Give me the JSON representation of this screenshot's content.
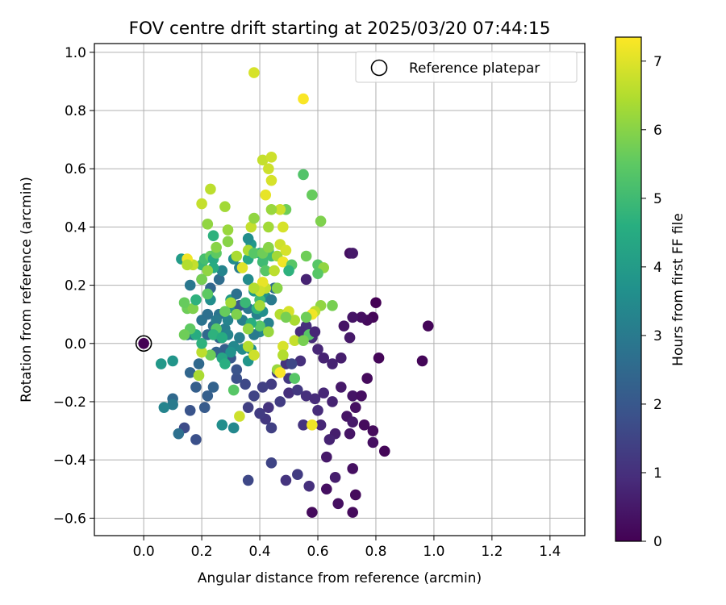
{
  "chart_data": {
    "type": "scatter",
    "title": "FOV centre drift starting at 2025/03/20 07:44:15",
    "xlabel": "Angular distance from reference (arcmin)",
    "ylabel": "Rotation from reference (arcmin)",
    "xlim": [
      -0.17,
      1.52
    ],
    "ylim": [
      -0.66,
      1.03
    ],
    "x_ticks": [
      0.0,
      0.2,
      0.4,
      0.6,
      0.8,
      1.0,
      1.2,
      1.4
    ],
    "x_tick_labels": [
      "0.0",
      "0.2",
      "0.4",
      "0.6",
      "0.8",
      "1.0",
      "1.2",
      "1.4"
    ],
    "y_ticks": [
      -0.6,
      -0.4,
      -0.2,
      0.0,
      0.2,
      0.4,
      0.6,
      0.8,
      1.0
    ],
    "y_tick_labels": [
      "−0.6",
      "−0.4",
      "−0.2",
      "0.0",
      "0.2",
      "0.4",
      "0.6",
      "0.8",
      "1.0"
    ],
    "grid": true,
    "legend": {
      "placement": "top-right",
      "entries": [
        "Reference platepar"
      ]
    },
    "reference": {
      "x": 0.0,
      "y": 0.0
    },
    "colorbar": {
      "label": "Hours from first FF file",
      "range": [
        0,
        7.35
      ],
      "ticks": [
        0,
        1,
        2,
        3,
        4,
        5,
        6,
        7
      ],
      "tick_labels": [
        "0",
        "1",
        "2",
        "3",
        "4",
        "5",
        "6",
        "7"
      ],
      "colormap": "viridis"
    },
    "points": [
      [
        0.0,
        0.0,
        0.0
      ],
      [
        0.58,
        -0.58,
        0.2
      ],
      [
        0.63,
        -0.5,
        0.3
      ],
      [
        0.67,
        -0.55,
        0.3
      ],
      [
        0.72,
        -0.58,
        0.2
      ],
      [
        0.73,
        -0.52,
        0.2
      ],
      [
        0.72,
        -0.43,
        0.3
      ],
      [
        0.66,
        -0.46,
        0.6
      ],
      [
        0.63,
        -0.39,
        0.5
      ],
      [
        0.57,
        -0.49,
        1.0
      ],
      [
        0.53,
        -0.45,
        1.3
      ],
      [
        0.49,
        -0.47,
        1.1
      ],
      [
        0.44,
        -0.41,
        1.5
      ],
      [
        0.36,
        -0.47,
        1.6
      ],
      [
        0.83,
        -0.37,
        0.1
      ],
      [
        0.79,
        -0.3,
        0.2
      ],
      [
        0.79,
        -0.34,
        0.3
      ],
      [
        0.76,
        -0.28,
        0.2
      ],
      [
        0.71,
        -0.31,
        0.4
      ],
      [
        0.66,
        -0.31,
        0.6
      ],
      [
        0.64,
        -0.33,
        0.7
      ],
      [
        0.61,
        -0.28,
        0.8
      ],
      [
        0.55,
        -0.28,
        1.1
      ],
      [
        0.6,
        -0.23,
        0.9
      ],
      [
        0.44,
        -0.29,
        1.4
      ],
      [
        0.42,
        -0.26,
        1.2
      ],
      [
        0.4,
        -0.24,
        1.3
      ],
      [
        0.36,
        -0.22,
        1.4
      ],
      [
        0.43,
        -0.22,
        1.1
      ],
      [
        0.47,
        -0.2,
        1.3
      ],
      [
        0.5,
        -0.17,
        1.0
      ],
      [
        0.53,
        -0.16,
        1.2
      ],
      [
        0.56,
        -0.18,
        1.0
      ],
      [
        0.59,
        -0.19,
        0.9
      ],
      [
        0.62,
        -0.17,
        0.8
      ],
      [
        0.65,
        -0.2,
        0.7
      ],
      [
        0.68,
        -0.15,
        0.5
      ],
      [
        0.72,
        -0.18,
        0.4
      ],
      [
        0.75,
        -0.18,
        0.3
      ],
      [
        0.77,
        -0.12,
        0.2
      ],
      [
        0.73,
        -0.22,
        0.3
      ],
      [
        0.7,
        -0.25,
        0.4
      ],
      [
        0.72,
        -0.27,
        0.5
      ],
      [
        0.81,
        -0.05,
        0.1
      ],
      [
        0.79,
        0.09,
        0.1
      ],
      [
        0.77,
        0.08,
        0.2
      ],
      [
        0.8,
        0.14,
        0.0
      ],
      [
        0.96,
        -0.06,
        0.1
      ],
      [
        0.98,
        0.06,
        0.1
      ],
      [
        0.75,
        0.09,
        0.3
      ],
      [
        0.72,
        0.09,
        0.4
      ],
      [
        0.71,
        0.31,
        0.3
      ],
      [
        0.72,
        0.31,
        0.5
      ],
      [
        0.69,
        0.06,
        0.4
      ],
      [
        0.71,
        0.02,
        0.5
      ],
      [
        0.68,
        -0.05,
        0.6
      ],
      [
        0.65,
        -0.07,
        0.7
      ],
      [
        0.62,
        -0.05,
        0.7
      ],
      [
        0.6,
        -0.02,
        0.8
      ],
      [
        0.58,
        0.02,
        0.9
      ],
      [
        0.56,
        0.06,
        1.0
      ],
      [
        0.54,
        0.04,
        0.9
      ],
      [
        0.54,
        -0.06,
        1.0
      ],
      [
        0.49,
        -0.07,
        1.1
      ],
      [
        0.5,
        -0.12,
        1.2
      ],
      [
        0.46,
        -0.1,
        1.2
      ],
      [
        0.44,
        -0.14,
        1.3
      ],
      [
        0.41,
        -0.15,
        1.4
      ],
      [
        0.38,
        -0.18,
        1.5
      ],
      [
        0.35,
        -0.14,
        1.6
      ],
      [
        0.32,
        -0.12,
        1.8
      ],
      [
        0.3,
        -0.05,
        2.0
      ],
      [
        0.32,
        -0.09,
        1.9
      ],
      [
        0.28,
        -0.02,
        2.2
      ],
      [
        0.25,
        -0.03,
        2.3
      ],
      [
        0.26,
        0.02,
        2.4
      ],
      [
        0.24,
        0.06,
        2.6
      ],
      [
        0.22,
        0.03,
        2.5
      ],
      [
        0.2,
        0.08,
        2.8
      ],
      [
        0.17,
        0.03,
        2.7
      ],
      [
        0.15,
        0.03,
        2.9
      ],
      [
        0.19,
        -0.07,
        2.5
      ],
      [
        0.16,
        -0.1,
        2.4
      ],
      [
        0.18,
        -0.15,
        2.2
      ],
      [
        0.22,
        -0.18,
        2.2
      ],
      [
        0.24,
        -0.15,
        2.3
      ],
      [
        0.21,
        -0.22,
        2.1
      ],
      [
        0.16,
        -0.23,
        1.9
      ],
      [
        0.14,
        -0.29,
        1.7
      ],
      [
        0.18,
        -0.33,
        1.8
      ],
      [
        0.1,
        -0.19,
        2.5
      ],
      [
        0.1,
        -0.21,
        3.0
      ],
      [
        0.12,
        -0.31,
        2.7
      ],
      [
        0.07,
        -0.22,
        3.3
      ],
      [
        0.06,
        -0.07,
        3.9
      ],
      [
        0.1,
        -0.06,
        3.8
      ],
      [
        0.13,
        0.29,
        4.0
      ],
      [
        0.16,
        0.2,
        2.9
      ],
      [
        0.2,
        0.22,
        3.0
      ],
      [
        0.22,
        0.1,
        2.7
      ],
      [
        0.26,
        0.1,
        2.8
      ],
      [
        0.28,
        0.05,
        3.1
      ],
      [
        0.29,
        0.03,
        3.3
      ],
      [
        0.31,
        -0.01,
        3.4
      ],
      [
        0.33,
        0.02,
        3.1
      ],
      [
        0.34,
        0.08,
        3.1
      ],
      [
        0.36,
        0.12,
        2.9
      ],
      [
        0.39,
        0.1,
        3.2
      ],
      [
        0.41,
        0.11,
        3.6
      ],
      [
        0.42,
        0.16,
        3.7
      ],
      [
        0.43,
        0.07,
        3.2
      ],
      [
        0.45,
        0.19,
        2.6
      ],
      [
        0.44,
        0.15,
        3.0
      ],
      [
        0.4,
        0.04,
        3.4
      ],
      [
        0.38,
        0.03,
        3.0
      ],
      [
        0.37,
        -0.02,
        3.6
      ],
      [
        0.36,
        -0.06,
        3.8
      ],
      [
        0.34,
        -0.02,
        3.5
      ],
      [
        0.3,
        -0.03,
        3.7
      ],
      [
        0.31,
        0.12,
        3.5
      ],
      [
        0.3,
        0.15,
        3.9
      ],
      [
        0.32,
        0.17,
        2.7
      ],
      [
        0.33,
        0.13,
        2.0
      ],
      [
        0.29,
        0.08,
        3.3
      ],
      [
        0.25,
        0.08,
        3.0
      ],
      [
        0.23,
        0.15,
        3.6
      ],
      [
        0.23,
        0.19,
        2.4
      ],
      [
        0.26,
        0.22,
        2.6
      ],
      [
        0.27,
        0.25,
        3.3
      ],
      [
        0.31,
        0.29,
        3.6
      ],
      [
        0.33,
        0.26,
        3.1
      ],
      [
        0.36,
        0.22,
        3.5
      ],
      [
        0.38,
        0.18,
        4.0
      ],
      [
        0.36,
        0.29,
        4.4
      ],
      [
        0.37,
        0.34,
        3.9
      ],
      [
        0.36,
        0.36,
        3.6
      ],
      [
        0.4,
        0.31,
        4.6
      ],
      [
        0.41,
        0.28,
        5.0
      ],
      [
        0.43,
        0.32,
        5.4
      ],
      [
        0.44,
        0.3,
        5.0
      ],
      [
        0.42,
        0.25,
        5.4
      ],
      [
        0.4,
        0.15,
        5.0
      ],
      [
        0.39,
        0.12,
        4.7
      ],
      [
        0.4,
        0.06,
        5.4
      ],
      [
        0.37,
        0.07,
        4.6
      ],
      [
        0.36,
        0.05,
        6.1
      ],
      [
        0.35,
        0.14,
        4.9
      ],
      [
        0.32,
        0.1,
        5.9
      ],
      [
        0.3,
        0.14,
        6.3
      ],
      [
        0.28,
        0.11,
        5.6
      ],
      [
        0.25,
        0.05,
        5.4
      ],
      [
        0.24,
        0.03,
        4.7
      ],
      [
        0.27,
        0.02,
        4.5
      ],
      [
        0.27,
        -0.05,
        4.3
      ],
      [
        0.28,
        -0.07,
        4.6
      ],
      [
        0.23,
        -0.04,
        5.7
      ],
      [
        0.2,
        -0.03,
        6.6
      ],
      [
        0.19,
        -0.11,
        6.4
      ],
      [
        0.2,
        0.0,
        4.7
      ],
      [
        0.18,
        0.03,
        4.5
      ],
      [
        0.16,
        0.05,
        5.5
      ],
      [
        0.14,
        0.03,
        5.7
      ],
      [
        0.15,
        0.12,
        5.7
      ],
      [
        0.17,
        0.12,
        5.9
      ],
      [
        0.14,
        0.14,
        5.6
      ],
      [
        0.18,
        0.15,
        4.7
      ],
      [
        0.22,
        0.17,
        5.5
      ],
      [
        0.2,
        0.27,
        4.9
      ],
      [
        0.21,
        0.29,
        5.1
      ],
      [
        0.23,
        0.3,
        5.6
      ],
      [
        0.24,
        0.29,
        4.4
      ],
      [
        0.25,
        0.31,
        5.5
      ],
      [
        0.24,
        0.26,
        4.5
      ],
      [
        0.22,
        0.25,
        6.1
      ],
      [
        0.2,
        0.22,
        5.8
      ],
      [
        0.17,
        0.27,
        6.7
      ],
      [
        0.15,
        0.29,
        7.2
      ],
      [
        0.15,
        0.27,
        6.5
      ],
      [
        0.22,
        0.41,
        6.1
      ],
      [
        0.24,
        0.37,
        4.7
      ],
      [
        0.25,
        0.33,
        6.0
      ],
      [
        0.29,
        0.35,
        6.0
      ],
      [
        0.29,
        0.39,
        6.2
      ],
      [
        0.28,
        0.47,
        6.3
      ],
      [
        0.23,
        0.53,
        6.6
      ],
      [
        0.2,
        0.48,
        6.7
      ],
      [
        0.32,
        0.3,
        6.4
      ],
      [
        0.34,
        0.26,
        7.0
      ],
      [
        0.36,
        0.32,
        6.4
      ],
      [
        0.38,
        0.31,
        5.4
      ],
      [
        0.41,
        0.31,
        5.7
      ],
      [
        0.43,
        0.33,
        6.0
      ],
      [
        0.46,
        0.3,
        6.3
      ],
      [
        0.47,
        0.34,
        6.8
      ],
      [
        0.49,
        0.32,
        6.9
      ],
      [
        0.48,
        0.28,
        7.2
      ],
      [
        0.45,
        0.25,
        6.6
      ],
      [
        0.42,
        0.19,
        6.7
      ],
      [
        0.41,
        0.21,
        7.1
      ],
      [
        0.4,
        0.18,
        6.8
      ],
      [
        0.38,
        0.19,
        6.5
      ],
      [
        0.4,
        0.13,
        6.3
      ],
      [
        0.43,
        0.04,
        6.2
      ],
      [
        0.38,
        -0.04,
        6.8
      ],
      [
        0.36,
        -0.01,
        6.5
      ],
      [
        0.46,
        -0.09,
        6.2
      ],
      [
        0.47,
        -0.1,
        7.3
      ],
      [
        0.48,
        -0.01,
        6.9
      ],
      [
        0.48,
        -0.04,
        6.5
      ],
      [
        0.52,
        0.01,
        6.7
      ],
      [
        0.49,
        0.1,
        6.2
      ],
      [
        0.47,
        0.1,
        6.5
      ],
      [
        0.5,
        0.11,
        6.9
      ],
      [
        0.52,
        0.08,
        6.4
      ],
      [
        0.52,
        -0.12,
        5.4
      ],
      [
        0.49,
        0.09,
        5.8
      ],
      [
        0.51,
        0.27,
        5.4
      ],
      [
        0.49,
        0.46,
        5.7
      ],
      [
        0.47,
        0.46,
        6.8
      ],
      [
        0.48,
        0.4,
        6.9
      ],
      [
        0.44,
        0.46,
        6.2
      ],
      [
        0.43,
        0.6,
        6.8
      ],
      [
        0.44,
        0.56,
        6.9
      ],
      [
        0.42,
        0.51,
        7.1
      ],
      [
        0.41,
        0.63,
        6.7
      ],
      [
        0.44,
        0.64,
        6.8
      ],
      [
        0.43,
        0.4,
        6.3
      ],
      [
        0.37,
        0.4,
        6.7
      ],
      [
        0.38,
        0.43,
        6.1
      ],
      [
        0.55,
        0.58,
        5.3
      ],
      [
        0.58,
        0.51,
        5.6
      ],
      [
        0.61,
        0.42,
        5.9
      ],
      [
        0.56,
        0.3,
        5.7
      ],
      [
        0.6,
        0.27,
        5.4
      ],
      [
        0.62,
        0.26,
        6.1
      ],
      [
        0.6,
        0.24,
        5.4
      ],
      [
        0.61,
        0.13,
        6.1
      ],
      [
        0.65,
        0.13,
        5.8
      ],
      [
        0.59,
        0.11,
        6.6
      ],
      [
        0.58,
        0.1,
        7.2
      ],
      [
        0.56,
        0.09,
        5.7
      ],
      [
        0.57,
        0.03,
        5.4
      ],
      [
        0.55,
        0.01,
        5.8
      ],
      [
        0.38,
        0.93,
        6.9
      ],
      [
        0.55,
        0.84,
        7.3
      ],
      [
        0.58,
        -0.28,
        7.2
      ],
      [
        0.33,
        -0.25,
        6.8
      ],
      [
        0.31,
        -0.16,
        5.4
      ],
      [
        0.31,
        -0.29,
        3.4
      ],
      [
        0.27,
        -0.28,
        3.6
      ],
      [
        0.51,
        -0.07,
        1.6
      ],
      [
        0.56,
        0.22,
        0.7
      ],
      [
        0.59,
        0.04,
        0.8
      ],
      [
        0.5,
        0.25,
        4.7
      ],
      [
        0.46,
        0.19,
        6.0
      ]
    ]
  }
}
